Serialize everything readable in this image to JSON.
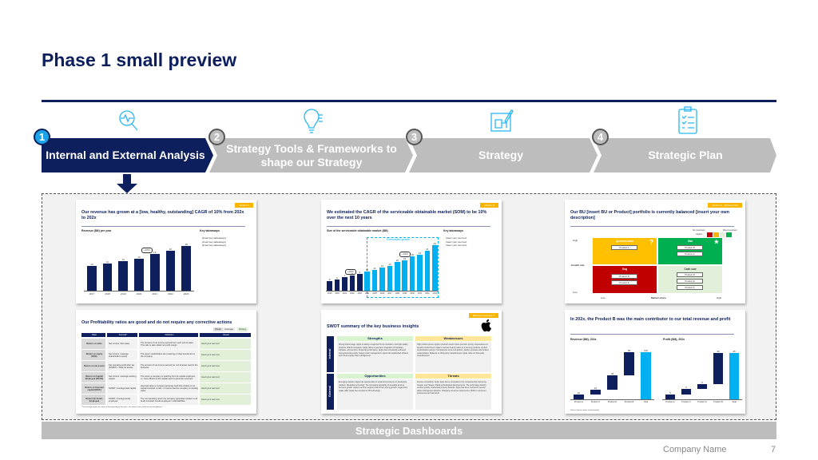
{
  "title": "Phase 1 small preview",
  "colors": {
    "navy": "#0d1f5c",
    "accent": "#00b0f0",
    "gray": "#bdbdbd",
    "tag": "#f7b500",
    "green": "#00b050",
    "red": "#c00000"
  },
  "steps": [
    {
      "num": "1",
      "label": "Internal and External Analysis",
      "icon": "magnifier-heartbeat-icon",
      "active": true
    },
    {
      "num": "2",
      "label": "Strategy Tools & Frameworks to shape our Strategy",
      "icon": "lightbulb-plug-icon",
      "active": false
    },
    {
      "num": "3",
      "label": "Strategy",
      "icon": "blueprint-pencil-icon",
      "active": false
    },
    {
      "num": "4",
      "label": "Strategic Plan",
      "icon": "clipboard-checklist-icon",
      "active": false
    }
  ],
  "thumbs": {
    "revenue": {
      "tag": "Version 1",
      "title": "Our revenue has grown at a [low, healthy, outstanding] CAGR of 10% from 202x to 202x",
      "chart_title": "Revenue ($M) per year",
      "cagr": "+10%",
      "takeaways_title": "Key takeaways",
      "takeaways": [
        "[Insert key takeaways]",
        "[Insert key takeaways]",
        "[Insert key takeaways]"
      ],
      "source": "Source: [Insert source of information]",
      "company": "Company Name"
    },
    "som": {
      "tag": "Version 2",
      "title": "We estimated the CAGR of the serviceable obtainable market (SOM) to be 10% over the next 10 years",
      "chart_title": "Size of the serviceable obtainable market ($M)",
      "forecast": "Forecasted growth",
      "cagr1": "+10%",
      "cagr2": "+10%",
      "takeaways_title": "Key takeaways",
      "takeaways": [
        "Insert your own text",
        "Insert your own text",
        "Insert your own text"
      ],
      "company": "Company Name"
    },
    "bcg": {
      "tag": "Version 2 - Manual chart",
      "title": "Our BU [insert BU or Product] portfolio is currently balanced [insert your own description]",
      "caption": "Caption",
      "no_invest": "No investment",
      "more_invest": "More investment",
      "high": "High",
      "low": "Low",
      "growth": "Growth rate",
      "market_share": "Market share",
      "quadrants": [
        {
          "name": "Question mark",
          "products": [
            "Product A"
          ]
        },
        {
          "name": "Star",
          "products": [
            "Product B",
            "Product C"
          ]
        },
        {
          "name": "Dog",
          "products": [
            "Product D",
            "Product E"
          ]
        },
        {
          "name": "Cash cow",
          "products": [
            "Product D",
            "Product E",
            "Product F"
          ]
        }
      ],
      "company": "Company Name"
    },
    "ratios": {
      "title": "Our Profitability ratios are good and do not require any corrective actions",
      "legend": [
        "Weak",
        "Average",
        "Strong"
      ],
      "headers": [
        "Ratio",
        "Formula*",
        "Definition",
        "Result"
      ],
      "rows": [
        [
          "Return on sales",
          "Net income / Net sales",
          "The amount of net income earned from each unit of sales. This ratio is also called net profit margin",
          "Insert your own text"
        ],
        [
          "Return on equity (ROE)",
          "Net income / Average shareholder's equity",
          "The return stockholders are receiving on their investment in the company",
          "Insert your own text"
        ],
        [
          "Return on net assets",
          "Net operating profit after tax (NOPAT) / Total net assets",
          "The amount of net income earned per unit of asset used in the business",
          "Insert your own text"
        ],
        [
          "Return on Capital Employed (ROCE)",
          "Net income / Average working capital",
          "The return a company is realizing from its capital employed, i.e. how efficient is the capital used to generate revenues",
          "Insert your own text"
        ],
        [
          "Return on Invested capital (ROIC)",
          "NOPAT / Average total capital",
          "How well does a company generate cash flow relative to its capital invested. A ratio >1 means that the company is creating value",
          "Insert your own text"
        ],
        [
          "Return On Funds Employed",
          "NOPAT / Average funds employed",
          "The net operating return the company generates relative to all funds invested. Funds employed = total liabilities",
          "Insert your own text"
        ]
      ],
      "footnote": "*The average equals the value at the beginning of the year + the value at the end of the year divided by 2",
      "company": "Company Name"
    },
    "swot": {
      "tag": "Business example 1",
      "title": "SWOT summary of the key business insights",
      "internal": "Internal",
      "external": "External",
      "quadrants": [
        {
          "name": "Strengths",
          "text": "Strong brand image: Apple is widely recognized for its innovation, and high quality products. Brand ecosystem: Apple offers a seamless integration of hardware, software, and services. Financial performance: Apple has consistently achieved strong financial results. Supply chain management: Apple has established efficient and robust supply chain management."
        },
        {
          "name": "Weaknesses",
          "text": "High product prices: Apple's products tend to have premium pricing. Dependence on specific product lines: Apple's success heavily relies on a few key products. Limited customization options: Compared to some competitors, Apple's products offer limited customization. Reliance on third-party manufacturers: Apple relies on third-party manufacturers."
        },
        {
          "name": "Opportunities",
          "text": "Emerging markets: Apple has opportunities to expand its presence in developing markets. Wearable technology: The increasing popularity of wearable devices. Services growth: Apple's services segment has shown strong growth. Augmented reality (AR): Apple has invested in AR technology."
        },
        {
          "name": "Threats",
          "text": "Intense competition: Apple faces fierce competition from companies like Samsung, Google, and Huawei. Rapid technological advancements: The technology industry evolves quickly. Intellectual property lawsuits: Apple has been involved in several patent infringement lawsuits. Changing consumer preferences: Shifts in consumer preferences and demands."
        }
      ],
      "company": "Company Name"
    },
    "waterfall": {
      "title": "In 202x, the Product B was the main contributor to our total revenue and profit",
      "source": "Source: [Insert source of information]",
      "company": "Company Name"
    }
  },
  "chart_data": [
    {
      "type": "bar",
      "title": "Revenue ($M) per year",
      "categories": [
        "2017",
        "2018",
        "2019",
        "2020",
        "2021",
        "2022",
        "2023"
      ],
      "values": [
        10,
        11,
        12,
        13,
        15,
        16,
        18
      ]
    },
    {
      "type": "bar",
      "title": "Size of the serviceable obtainable market ($M)",
      "categories": [
        "2019",
        "2020",
        "2021",
        "2022",
        "2023",
        "2024",
        "2025",
        "2026",
        "2027",
        "2028",
        "2029",
        "2030",
        "2031",
        "2032",
        "2033"
      ],
      "values": [
        5,
        6,
        7,
        8,
        9,
        10,
        11,
        12,
        13,
        15,
        16,
        18,
        19,
        21,
        24
      ],
      "forecast_from": "2024"
    },
    {
      "type": "bar",
      "title": "Revenue ($M), 202x",
      "categories": [
        "Product A",
        "Product C",
        "Product D",
        "Product B",
        "Total"
      ],
      "values": [
        10,
        10,
        30,
        50,
        100
      ],
      "waterfall": true
    },
    {
      "type": "bar",
      "title": "Profit ($M), 202x",
      "categories": [
        "Product A",
        "Product C",
        "Product D",
        "Product B",
        "Total"
      ],
      "values": [
        5,
        5,
        5,
        30,
        45
      ],
      "waterfall": true
    }
  ],
  "bottom_label": "Strategic Dashboards",
  "footer": {
    "company": "Company Name",
    "page": "7"
  }
}
